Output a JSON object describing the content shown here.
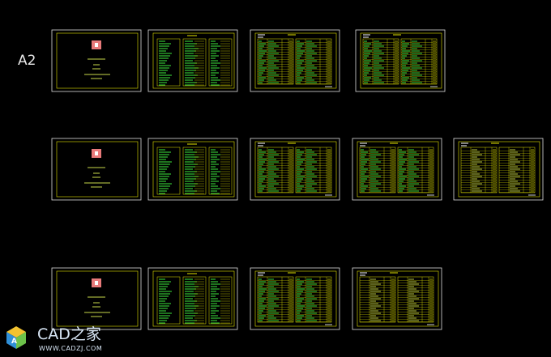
{
  "label": "A2",
  "watermark": {
    "brand": "CAD之家",
    "url": "WWW.CADZJ.COM"
  }
}
